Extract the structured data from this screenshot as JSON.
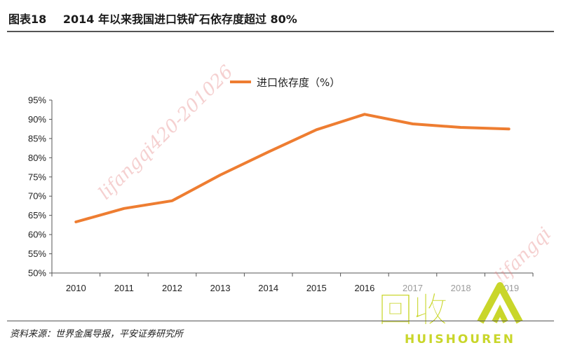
{
  "header": {
    "label": "图表18",
    "title": "2014 年以来我国进口铁矿石依存度超过 80%"
  },
  "source": "资料来源：世界金属导报，平安证券研究所",
  "watermarks": {
    "center": "lifangqi420-201026",
    "right": "lifangqi"
  },
  "logo": {
    "main": "回收",
    "sub": "HUISHOUREN",
    "color": "#c9d62a"
  },
  "chart_data": {
    "type": "line",
    "x": [
      "2010",
      "2011",
      "2012",
      "2013",
      "2014",
      "2015",
      "2016",
      "2017",
      "2018",
      "2019"
    ],
    "series": [
      {
        "name": "进口依存度（%）",
        "values": [
          63.3,
          66.8,
          68.8,
          75.5,
          81.5,
          87.3,
          91.3,
          88.8,
          87.9,
          87.5
        ],
        "color": "#ee7d31"
      }
    ],
    "ylim": [
      50,
      95
    ],
    "yticks": [
      "50%",
      "55%",
      "60%",
      "65%",
      "70%",
      "75%",
      "80%",
      "85%",
      "90%",
      "95%"
    ],
    "legend": "top-center",
    "grid": false
  }
}
